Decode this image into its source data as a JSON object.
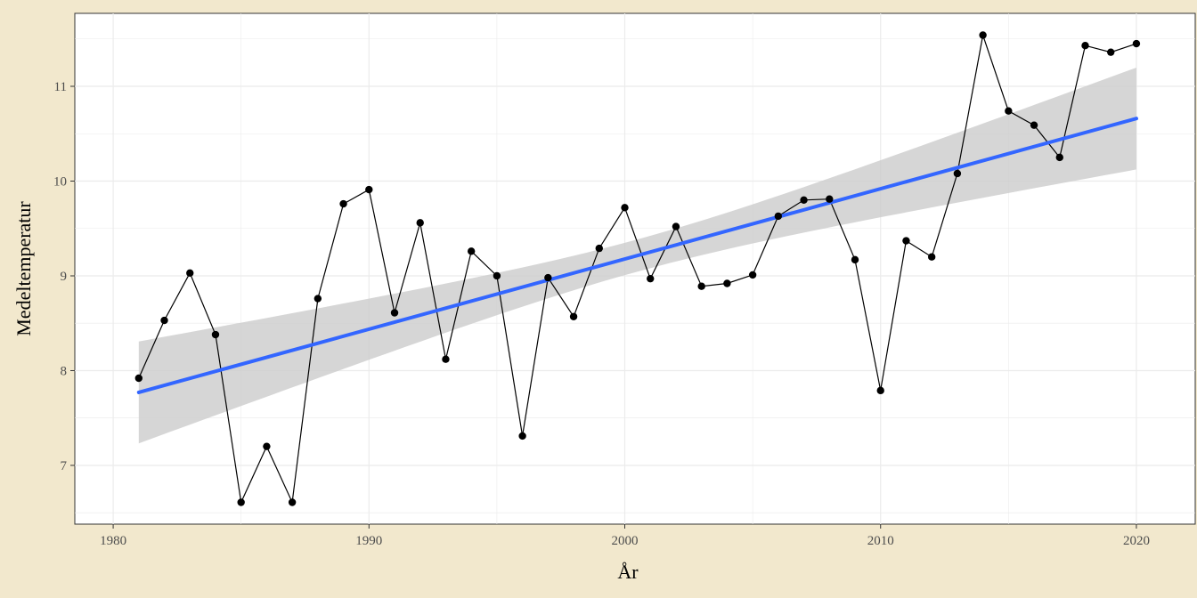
{
  "chart_data": {
    "type": "line",
    "xlabel": "År",
    "ylabel": "Medeltemperatur",
    "xlim": [
      1978.5,
      2022.3
    ],
    "ylim": [
      6.38,
      11.77
    ],
    "x_ticks": [
      1980,
      1990,
      2000,
      2010,
      2020
    ],
    "y_ticks": [
      7,
      8,
      9,
      10,
      11
    ],
    "x_tick_labels": [
      "1980",
      "1990",
      "2000",
      "2010",
      "2020"
    ],
    "y_tick_labels": [
      "7",
      "8",
      "9",
      "10",
      "11"
    ],
    "grid": true,
    "colors": {
      "page_background": "#f2e8cd",
      "panel_background": "#ffffff",
      "grid": "#ebebeb",
      "line": "#000000",
      "points": "#000000",
      "trend": "#3366ff",
      "confidence_band": "#cccccc"
    },
    "series": [
      {
        "x": [
          1981,
          1982,
          1983,
          1984,
          1985,
          1986,
          1987,
          1988,
          1989,
          1990,
          1991,
          1992,
          1993,
          1994,
          1995,
          1996,
          1997,
          1998,
          1999,
          2000,
          2001,
          2002,
          2003,
          2004,
          2005,
          2006,
          2007,
          2008,
          2009,
          2010,
          2011,
          2012,
          2013,
          2014,
          2015,
          2016,
          2017,
          2018,
          2019,
          2020
        ],
        "values": [
          7.92,
          8.53,
          9.03,
          8.38,
          6.61,
          7.2,
          6.61,
          8.76,
          9.76,
          9.91,
          8.61,
          9.56,
          8.12,
          9.26,
          9.0,
          7.31,
          8.98,
          8.57,
          9.29,
          9.72,
          8.97,
          9.52,
          8.89,
          8.92,
          9.01,
          9.63,
          9.8,
          9.81,
          9.17,
          7.79,
          9.37,
          9.2,
          10.08,
          11.54,
          10.74,
          10.59,
          10.25,
          11.43,
          11.36,
          11.45
        ]
      }
    ],
    "trend": {
      "method": "linear",
      "x": [
        1981,
        2020
      ],
      "values": [
        7.77,
        10.66
      ],
      "band_lower": [
        7.23,
        10.12
      ],
      "band_upper": [
        8.31,
        11.19
      ],
      "band_mid_x": 2000.5,
      "band_mid_half_width": 0.17
    }
  }
}
